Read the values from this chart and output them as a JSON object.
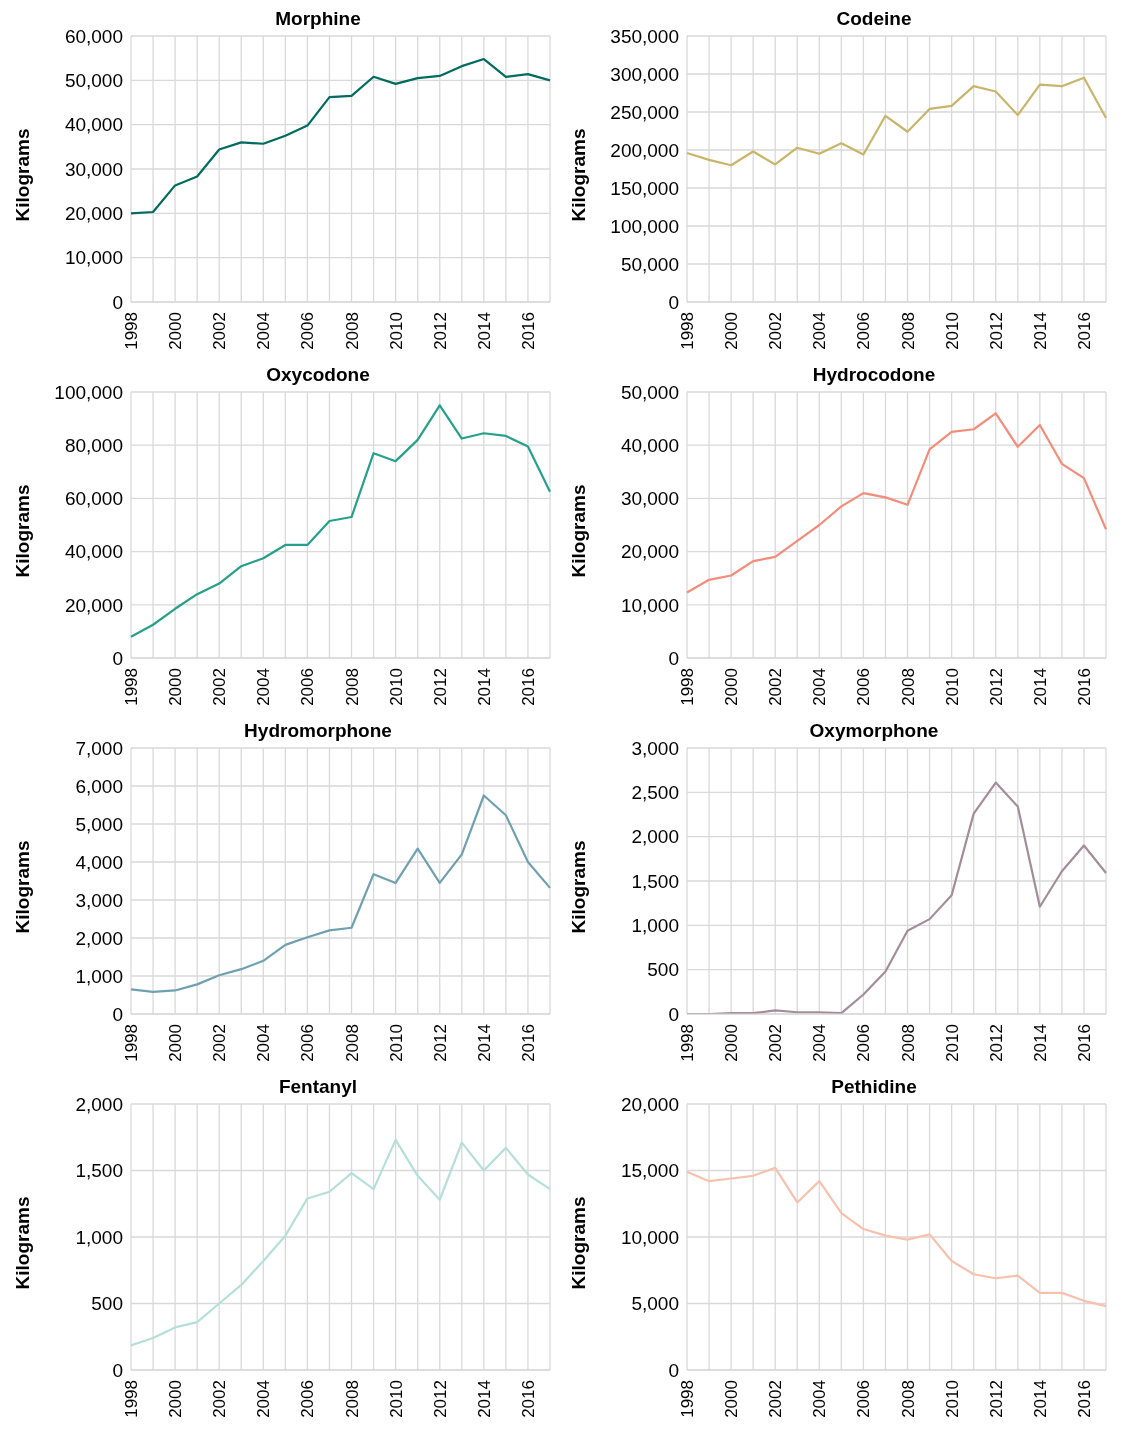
{
  "chart_data": [
    {
      "type": "line",
      "title": "Morphine",
      "ylabel": "Kilograms",
      "categories": [
        "1998",
        null,
        "2000",
        null,
        "2002",
        null,
        "2004",
        null,
        "2006",
        null,
        "2008",
        null,
        "2010",
        null,
        "2012",
        null,
        "2014",
        null,
        "2016",
        null
      ],
      "series": [
        {
          "color": "#006b5f",
          "values": [
            20000,
            20300,
            26300,
            28300,
            34400,
            36000,
            35700,
            37500,
            39800,
            46200,
            46500,
            50800,
            49200,
            50500,
            51000,
            53200,
            54800,
            50800,
            51400,
            50000
          ]
        }
      ],
      "ylim": [
        0,
        60000
      ],
      "yticks": [
        {
          "value": 0,
          "label": "0"
        },
        {
          "value": 10000,
          "label": "10,000"
        },
        {
          "value": 20000,
          "label": "20,000"
        },
        {
          "value": 30000,
          "label": "30,000"
        },
        {
          "value": 40000,
          "label": "40,000"
        },
        {
          "value": 50000,
          "label": "50,000"
        },
        {
          "value": 60000,
          "label": "60,000"
        }
      ],
      "grid": true
    },
    {
      "type": "line",
      "title": "Codeine",
      "ylabel": "Kilograms",
      "categories": [
        "1998",
        null,
        "2000",
        null,
        "2002",
        null,
        "2004",
        null,
        "2006",
        null,
        "2008",
        null,
        "2010",
        null,
        "2012",
        null,
        "2014",
        null,
        "2016",
        null
      ],
      "series": [
        {
          "color": "#c9b56a",
          "values": [
            196000,
            187000,
            180000,
            198000,
            181000,
            203000,
            195000,
            209000,
            194000,
            245000,
            224000,
            254000,
            258000,
            284000,
            277000,
            246000,
            286000,
            284000,
            295000,
            242000
          ]
        }
      ],
      "ylim": [
        0,
        350000
      ],
      "yticks": [
        {
          "value": 0,
          "label": "0"
        },
        {
          "value": 50000,
          "label": "50,000"
        },
        {
          "value": 100000,
          "label": "100,000"
        },
        {
          "value": 150000,
          "label": "150,000"
        },
        {
          "value": 200000,
          "label": "200,000"
        },
        {
          "value": 250000,
          "label": "250,000"
        },
        {
          "value": 300000,
          "label": "300,000"
        },
        {
          "value": 350000,
          "label": "350,000"
        }
      ],
      "grid": true
    },
    {
      "type": "line",
      "title": "Oxycodone",
      "ylabel": "Kilograms",
      "categories": [
        "1998",
        null,
        "2000",
        null,
        "2002",
        null,
        "2004",
        null,
        "2006",
        null,
        "2008",
        null,
        "2010",
        null,
        "2012",
        null,
        "2014",
        null,
        "2016",
        null
      ],
      "series": [
        {
          "color": "#26a08a",
          "values": [
            8000,
            12500,
            18500,
            24000,
            28000,
            34500,
            37500,
            42500,
            42500,
            51500,
            53000,
            77000,
            74000,
            82000,
            95000,
            82500,
            84500,
            83500,
            79500,
            62500
          ]
        }
      ],
      "ylim": [
        0,
        100000
      ],
      "yticks": [
        {
          "value": 0,
          "label": "0"
        },
        {
          "value": 20000,
          "label": "20,000"
        },
        {
          "value": 40000,
          "label": "40,000"
        },
        {
          "value": 60000,
          "label": "60,000"
        },
        {
          "value": 80000,
          "label": "80,000"
        },
        {
          "value": 100000,
          "label": "100,000"
        }
      ],
      "grid": true
    },
    {
      "type": "line",
      "title": "Hydrocodone",
      "ylabel": "Kilograms",
      "categories": [
        "1998",
        null,
        "2000",
        null,
        "2002",
        null,
        "2004",
        null,
        "2006",
        null,
        "2008",
        null,
        "2010",
        null,
        "2012",
        null,
        "2014",
        null,
        "2016",
        null
      ],
      "series": [
        {
          "color": "#f48c7a",
          "values": [
            12300,
            14700,
            15500,
            18200,
            19000,
            22000,
            25000,
            28500,
            31000,
            30200,
            28800,
            39200,
            42500,
            43000,
            46000,
            39700,
            43800,
            36500,
            33800,
            24200
          ]
        }
      ],
      "ylim": [
        0,
        50000
      ],
      "yticks": [
        {
          "value": 0,
          "label": "0"
        },
        {
          "value": 10000,
          "label": "10,000"
        },
        {
          "value": 20000,
          "label": "20,000"
        },
        {
          "value": 30000,
          "label": "30,000"
        },
        {
          "value": 40000,
          "label": "40,000"
        },
        {
          "value": 50000,
          "label": "50,000"
        }
      ],
      "grid": true
    },
    {
      "type": "line",
      "title": "Hydromorphone",
      "ylabel": "Kilograms",
      "categories": [
        "1998",
        null,
        "2000",
        null,
        "2002",
        null,
        "2004",
        null,
        "2006",
        null,
        "2008",
        null,
        "2010",
        null,
        "2012",
        null,
        "2014",
        null,
        "2016",
        null
      ],
      "series": [
        {
          "color": "#6fa0b0",
          "values": [
            650,
            580,
            620,
            780,
            1020,
            1180,
            1400,
            1820,
            2020,
            2200,
            2270,
            3680,
            3450,
            4350,
            3450,
            4200,
            5750,
            5230,
            4000,
            3320
          ]
        }
      ],
      "ylim": [
        0,
        7000
      ],
      "yticks": [
        {
          "value": 0,
          "label": "0"
        },
        {
          "value": 1000,
          "label": "1,000"
        },
        {
          "value": 2000,
          "label": "2,000"
        },
        {
          "value": 3000,
          "label": "3,000"
        },
        {
          "value": 4000,
          "label": "4,000"
        },
        {
          "value": 5000,
          "label": "5,000"
        },
        {
          "value": 6000,
          "label": "6,000"
        },
        {
          "value": 7000,
          "label": "7,000"
        }
      ],
      "grid": true
    },
    {
      "type": "line",
      "title": "Oxymorphone",
      "ylabel": "Kilograms",
      "categories": [
        "1998",
        null,
        "2000",
        null,
        "2002",
        null,
        "2004",
        null,
        "2006",
        null,
        "2008",
        null,
        "2010",
        null,
        "2012",
        null,
        "2014",
        null,
        "2016",
        null
      ],
      "series": [
        {
          "color": "#a48d98",
          "values": [
            0,
            0,
            10,
            10,
            40,
            20,
            20,
            10,
            220,
            480,
            940,
            1070,
            1340,
            2260,
            2610,
            2340,
            1210,
            1610,
            1900,
            1590
          ]
        }
      ],
      "ylim": [
        0,
        3000
      ],
      "yticks": [
        {
          "value": 0,
          "label": "0"
        },
        {
          "value": 500,
          "label": "500"
        },
        {
          "value": 1000,
          "label": "1,000"
        },
        {
          "value": 1500,
          "label": "1,500"
        },
        {
          "value": 2000,
          "label": "2,000"
        },
        {
          "value": 2500,
          "label": "2,500"
        },
        {
          "value": 3000,
          "label": "3,000"
        }
      ],
      "grid": true
    },
    {
      "type": "line",
      "title": "Fentanyl",
      "ylabel": "Kilograms",
      "categories": [
        "1998",
        null,
        "2000",
        null,
        "2002",
        null,
        "2004",
        null,
        "2006",
        null,
        "2008",
        null,
        "2010",
        null,
        "2012",
        null,
        "2014",
        null,
        "2016",
        null
      ],
      "series": [
        {
          "color": "#b5e0d8",
          "values": [
            185,
            240,
            320,
            360,
            500,
            640,
            820,
            1010,
            1290,
            1340,
            1480,
            1360,
            1730,
            1460,
            1280,
            1710,
            1500,
            1670,
            1470,
            1360
          ]
        }
      ],
      "ylim": [
        0,
        2000
      ],
      "yticks": [
        {
          "value": 0,
          "label": "0"
        },
        {
          "value": 500,
          "label": "500"
        },
        {
          "value": 1000,
          "label": "1,000"
        },
        {
          "value": 1500,
          "label": "1,500"
        },
        {
          "value": 2000,
          "label": "2,000"
        }
      ],
      "grid": true
    },
    {
      "type": "line",
      "title": "Pethidine",
      "ylabel": "Kilograms",
      "categories": [
        "1998",
        null,
        "2000",
        null,
        "2002",
        null,
        "2004",
        null,
        "2006",
        null,
        "2008",
        null,
        "2010",
        null,
        "2012",
        null,
        "2014",
        null,
        "2016",
        null
      ],
      "series": [
        {
          "color": "#f8c1ad",
          "values": [
            14900,
            14200,
            14400,
            14600,
            15200,
            12600,
            14200,
            11800,
            10600,
            10100,
            9800,
            10200,
            8200,
            7200,
            6900,
            7100,
            5800,
            5800,
            5200,
            4800
          ]
        }
      ],
      "ylim": [
        0,
        20000
      ],
      "yticks": [
        {
          "value": 0,
          "label": "0"
        },
        {
          "value": 5000,
          "label": "5,000"
        },
        {
          "value": 10000,
          "label": "10,000"
        },
        {
          "value": 15000,
          "label": "15,000"
        },
        {
          "value": 20000,
          "label": "20,000"
        }
      ],
      "grid": true
    }
  ]
}
